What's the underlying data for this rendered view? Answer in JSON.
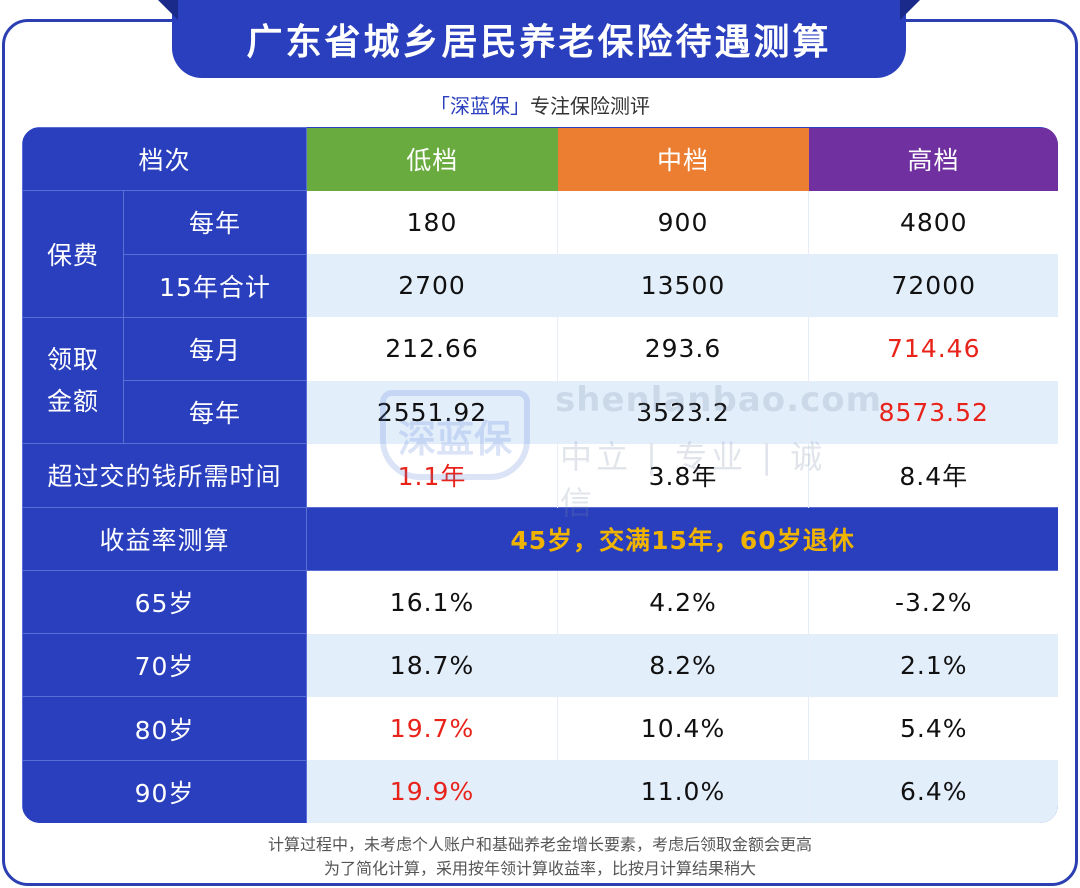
{
  "title": "广东省城乡居民养老保险待遇测算",
  "subtitle": {
    "brand": "「深蓝保」",
    "text": "专注保险测评"
  },
  "header": {
    "col0": "档次",
    "low": "低档",
    "mid": "中档",
    "high": "高档"
  },
  "groups": {
    "premium": "保费",
    "benefit_line1": "领取",
    "benefit_line2": "金额"
  },
  "rows": {
    "premium_year": {
      "label": "每年",
      "low": "180",
      "mid": "900",
      "high": "4800"
    },
    "premium_total": {
      "label": "15年合计",
      "low": "2700",
      "mid": "13500",
      "high": "72000"
    },
    "benefit_month": {
      "label": "每月",
      "low": "212.66",
      "mid": "293.6",
      "high": "714.46"
    },
    "benefit_year": {
      "label": "每年",
      "low": "2551.92",
      "mid": "3523.2",
      "high": "8573.52"
    },
    "payback": {
      "label": "超过交的钱所需时间",
      "low": "1.1年",
      "mid": "3.8年",
      "high": "8.4年"
    },
    "yield_header": {
      "label": "收益率测算",
      "scenario": "45岁，交满15年，60岁退休"
    },
    "age65": {
      "label": "65岁",
      "low": "16.1%",
      "mid": "4.2%",
      "high": "-3.2%"
    },
    "age70": {
      "label": "70岁",
      "low": "18.7%",
      "mid": "8.2%",
      "high": "2.1%"
    },
    "age80": {
      "label": "80岁",
      "low": "19.7%",
      "mid": "10.4%",
      "high": "5.4%"
    },
    "age90": {
      "label": "90岁",
      "low": "19.9%",
      "mid": "11.0%",
      "high": "6.4%"
    }
  },
  "watermark": {
    "logo": "深蓝保",
    "url": "shenlanbao.com",
    "slogan": "中立 | 专业 | 诚信"
  },
  "footnote": {
    "line1": "计算过程中，未考虑个人账户和基础养老金增长要素，考虑后领取金额会更高",
    "line2": "为了简化计算，采用按年领计算收益率，比按月计算结果稍大"
  },
  "colors": {
    "primary_blue": "#2a3fbd",
    "low_green": "#6aab3f",
    "mid_orange": "#ec7e32",
    "high_purple": "#7030a0",
    "highlight_red": "#e8231a",
    "scenario_gold": "#f0b400"
  }
}
